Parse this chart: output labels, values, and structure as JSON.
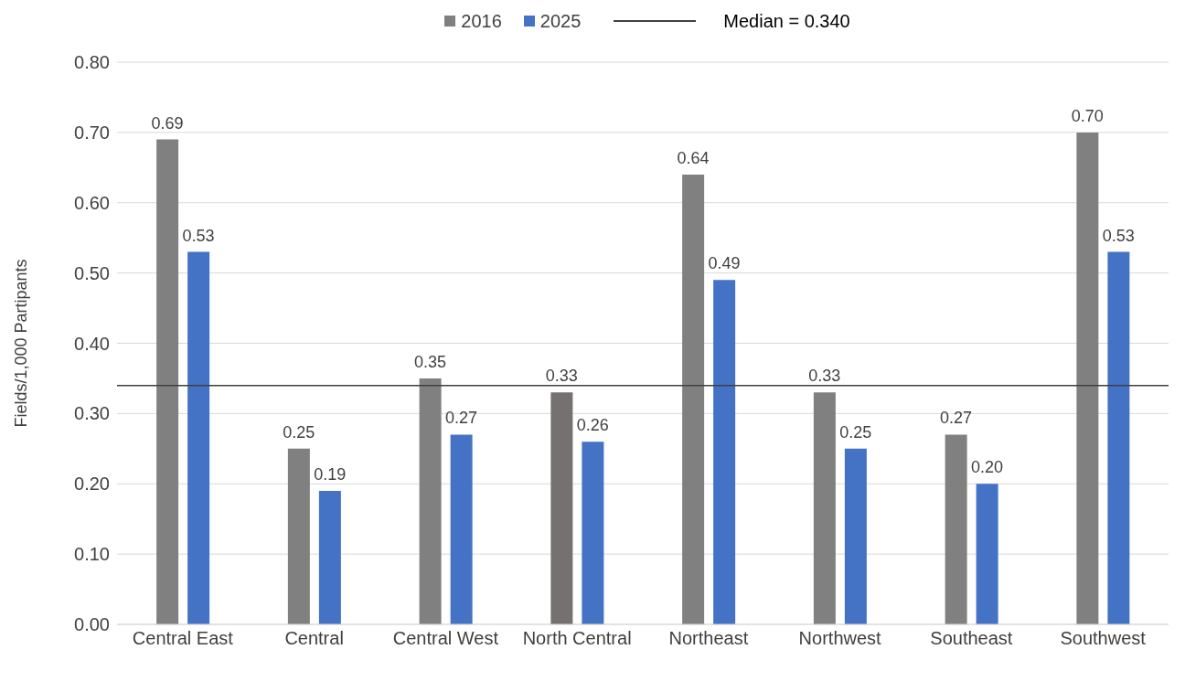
{
  "chart_data": {
    "type": "bar",
    "ylabel": "Fields/1,000 Partipants",
    "categories": [
      "Central East",
      "Central",
      "Central West",
      "North Central",
      "Northeast",
      "Northwest",
      "Southeast",
      "Southwest"
    ],
    "series": [
      {
        "name": "2016",
        "color": "#808080",
        "colors": [
          "#808080",
          "#808080",
          "#808080",
          "#767171",
          "#808080",
          "#808080",
          "#808080",
          "#808080"
        ],
        "values": [
          0.69,
          0.25,
          0.35,
          0.33,
          0.64,
          0.33,
          0.27,
          0.7
        ],
        "value_labels": [
          "0.69",
          "0.25",
          "0.35",
          "0.33",
          "0.64",
          "0.33",
          "0.27",
          "0.70"
        ]
      },
      {
        "name": "2025",
        "color": "#4472c4",
        "values": [
          0.53,
          0.19,
          0.27,
          0.26,
          0.49,
          0.25,
          0.2,
          0.53
        ],
        "value_labels": [
          "0.53",
          "0.19",
          "0.27",
          "0.26",
          "0.49",
          "0.25",
          "0.20",
          "0.53"
        ]
      }
    ],
    "ylim": [
      0,
      0.8
    ],
    "yticks": [
      {
        "value": 0,
        "label": "0.00"
      },
      {
        "value": 0.1,
        "label": "0.10"
      },
      {
        "value": 0.2,
        "label": "0.20"
      },
      {
        "value": 0.3,
        "label": "0.30"
      },
      {
        "value": 0.4,
        "label": "0.40"
      },
      {
        "value": 0.5,
        "label": "0.50"
      },
      {
        "value": 0.6,
        "label": "0.60"
      },
      {
        "value": 0.7,
        "label": "0.70"
      },
      {
        "value": 0.8,
        "label": "0.80"
      }
    ],
    "ref_lines": [
      {
        "axis": "y",
        "value": 0.34,
        "label": "Median = 0.340",
        "color": "#404040"
      }
    ],
    "grid": "y",
    "legend": "top"
  }
}
